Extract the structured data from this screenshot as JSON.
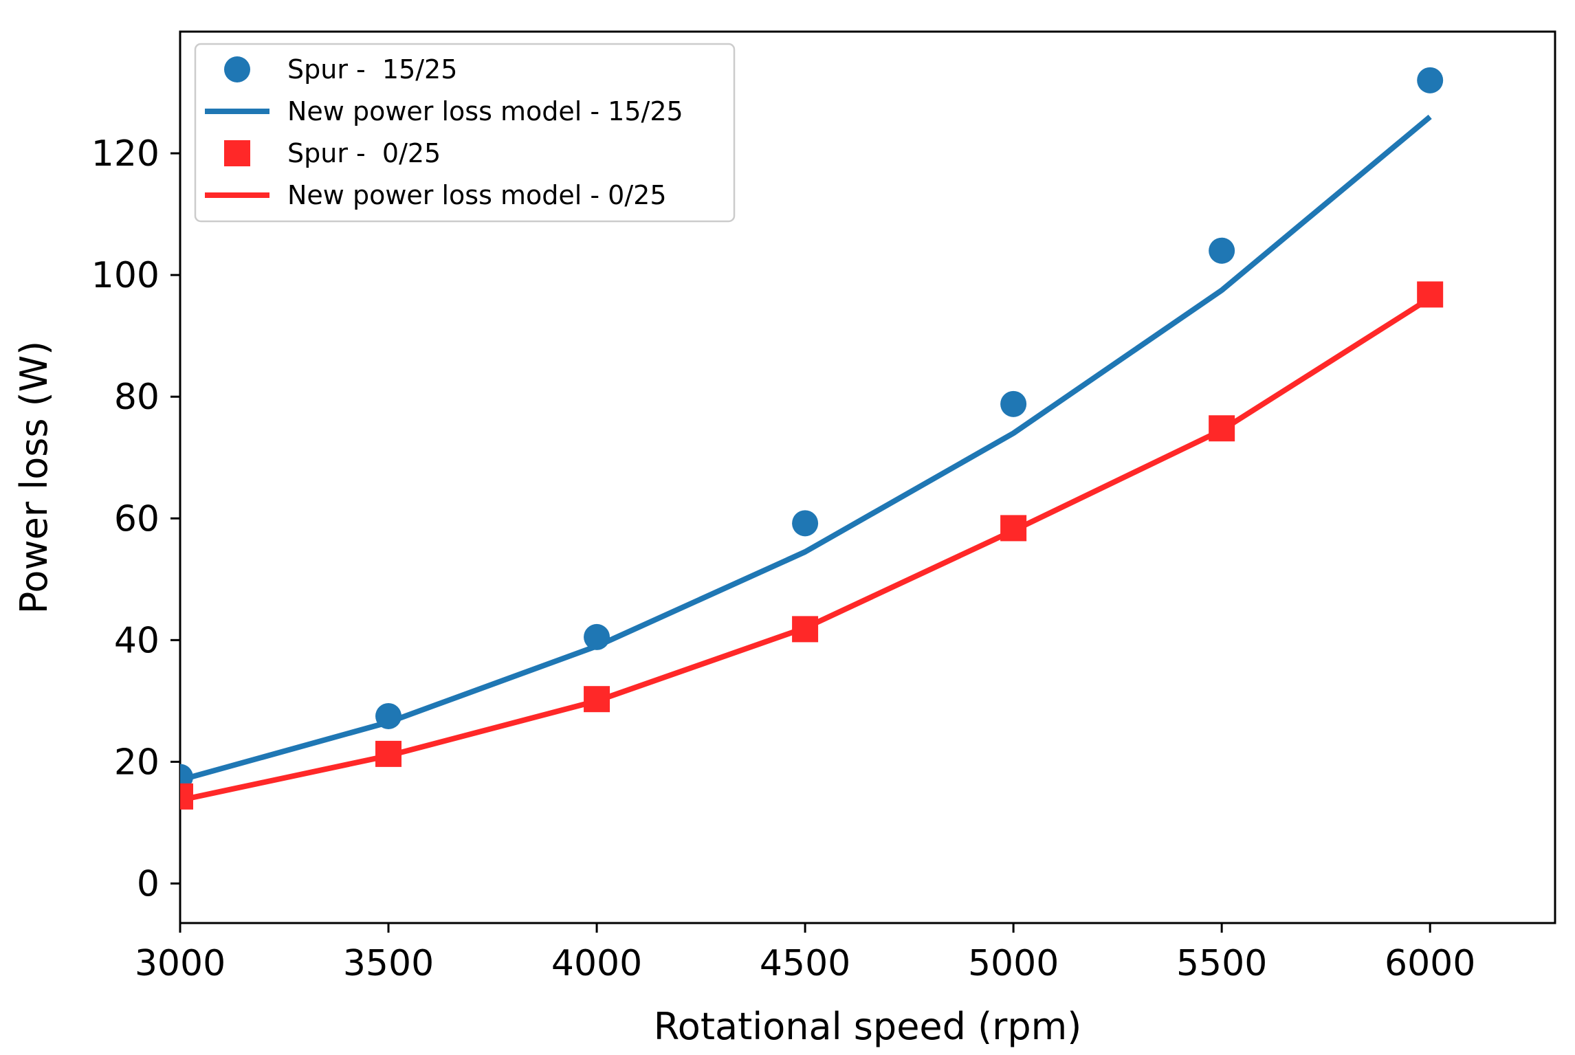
{
  "chart_data": {
    "type": "line",
    "title": "",
    "xlabel": "Rotational speed (rpm)",
    "ylabel": "Power loss (W)",
    "xlim": [
      3000,
      6300
    ],
    "ylim": [
      -6.5,
      140
    ],
    "xticks": [
      3000,
      3500,
      4000,
      4500,
      5000,
      5500,
      6000
    ],
    "yticks": [
      0,
      20,
      40,
      60,
      80,
      100,
      120
    ],
    "grid": false,
    "legend_position": "top-left",
    "x": [
      3000,
      3500,
      4000,
      4500,
      5000,
      5500,
      6000
    ],
    "series": [
      {
        "name": "Spur -  15/25",
        "kind": "markers",
        "marker": "circle",
        "color": "#1f77b4",
        "values": [
          17.5,
          27.5,
          40.5,
          59.2,
          78.8,
          104.0,
          132.0
        ]
      },
      {
        "name": "New power loss model - 15/25",
        "kind": "line",
        "color": "#1f77b4",
        "values": [
          17.0,
          26.5,
          39.0,
          54.5,
          74.0,
          97.5,
          126.0
        ]
      },
      {
        "name": "Spur -  0/25",
        "kind": "markers",
        "marker": "square",
        "color": "#ff2828",
        "values": [
          14.3,
          21.3,
          30.3,
          41.8,
          58.4,
          74.8,
          96.8
        ]
      },
      {
        "name": "New power loss model - 0/25",
        "kind": "line",
        "color": "#ff2828",
        "values": [
          13.7,
          21.0,
          30.0,
          42.0,
          58.0,
          74.5,
          96.2
        ]
      }
    ]
  }
}
